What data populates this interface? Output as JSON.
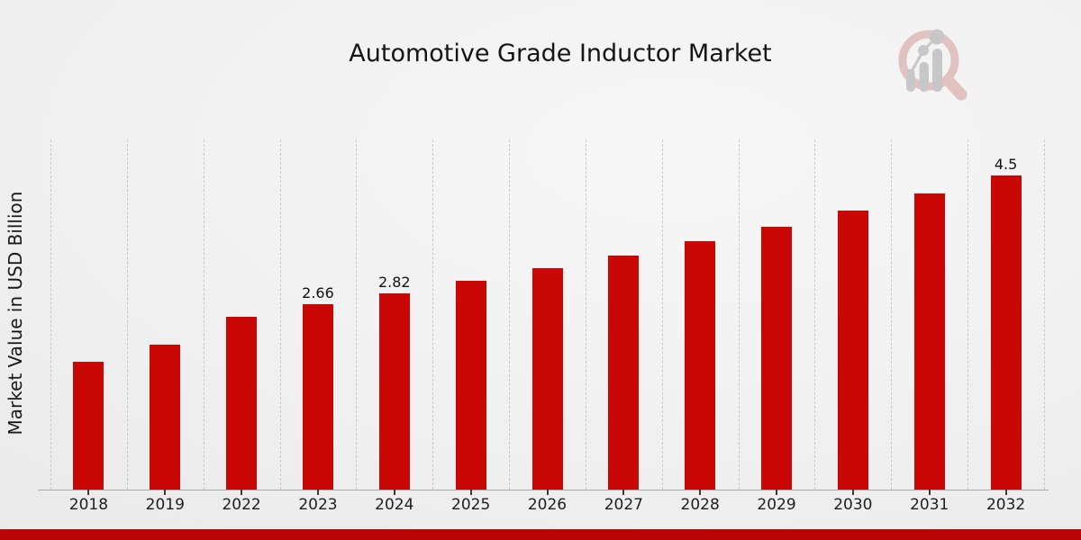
{
  "chart_data": {
    "type": "bar",
    "title": "Automotive Grade Inductor Market",
    "ylabel": "Market Value in USD Billion",
    "xlabel": "",
    "categories": [
      "2018",
      "2019",
      "2022",
      "2023",
      "2024",
      "2025",
      "2026",
      "2027",
      "2028",
      "2029",
      "2030",
      "2031",
      "2032"
    ],
    "values": [
      1.84,
      2.08,
      2.48,
      2.66,
      2.82,
      2.99,
      3.17,
      3.36,
      3.56,
      3.77,
      4.0,
      4.24,
      4.5
    ],
    "value_labels": [
      "",
      "",
      "",
      "2.66",
      "2.82",
      "",
      "",
      "",
      "",
      "",
      "",
      "",
      "4.5"
    ],
    "ylim": [
      0,
      5
    ],
    "grid": "vertical-dashed",
    "legend": "none",
    "bar_color": "#c90806",
    "footer_bar_color": "#b80606"
  },
  "watermark": {
    "name": "market-research-future-logo",
    "ring_color": "#e2c1c1",
    "bars_color": "#c7c7c7"
  }
}
